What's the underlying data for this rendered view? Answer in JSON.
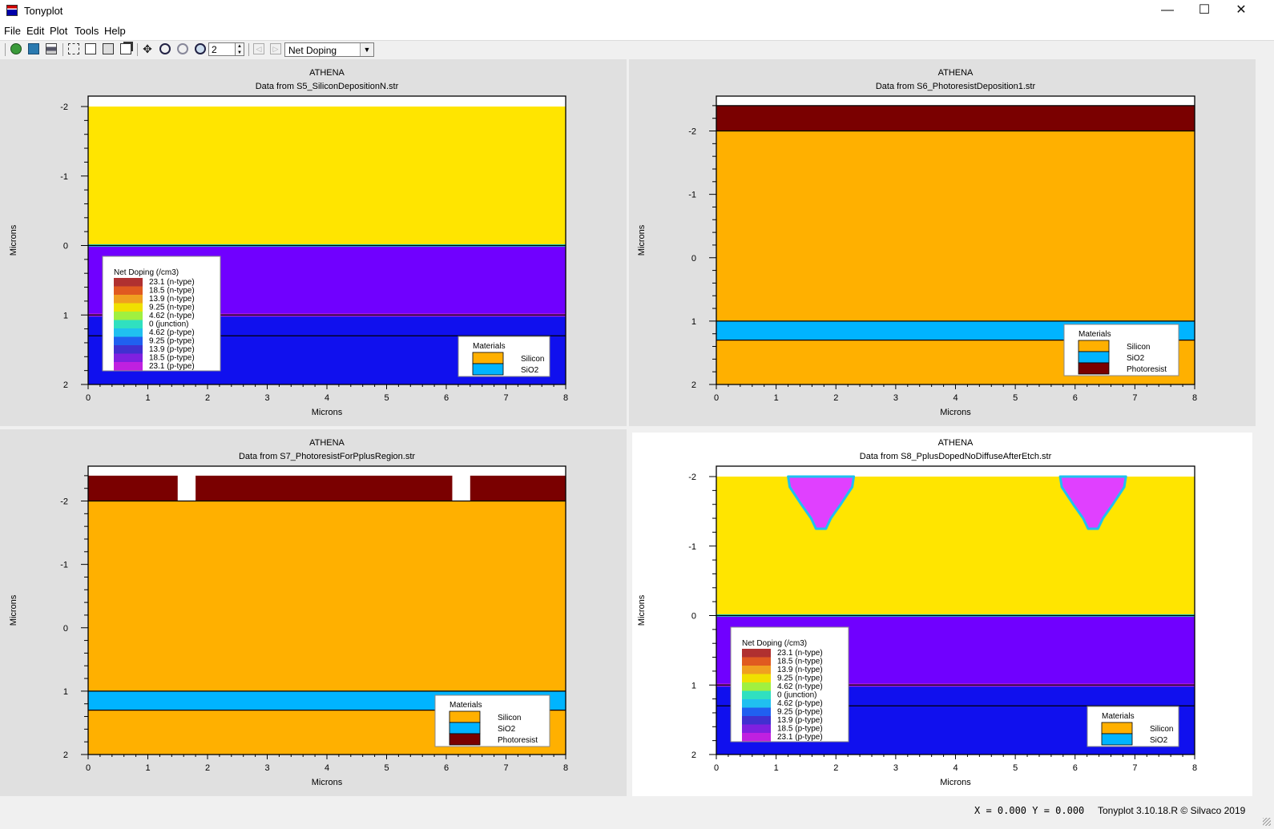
{
  "window": {
    "title": "Tonyplot",
    "icon": "tonyplot-app-icon",
    "controls": [
      "minimize-icon",
      "maximize-icon",
      "close-icon"
    ],
    "minimize_glyph": "—",
    "maximize_glyph": "☐",
    "close_glyph": "✕"
  },
  "menu": [
    "File",
    "Edit",
    "Plot",
    "Tools",
    "Help"
  ],
  "toolbar": {
    "icons": [
      "load-icon",
      "save-icon",
      "print-icon",
      "select-icon",
      "copy-icon",
      "paste-icon",
      "overlay-icon",
      "pan-icon",
      "zoom-in-icon",
      "zoom-out-icon",
      "zoom-region-icon",
      "previous-plot-icon",
      "next-plot-icon"
    ],
    "zoom_value": "2",
    "quantity_select": "Net Doping"
  },
  "colors": {
    "silicon_light": "#ffe500",
    "silicon": "#ffb000",
    "sio2": "#00b4ff",
    "photoresist": "#7a0000",
    "p_type_deep": "#7000ff",
    "p_type_strong": "#1010ee",
    "p_implant": "#e040ff"
  },
  "plots": [
    {
      "header": "ATHENA",
      "subtitle": "Data from S5_SiliconDepositionN.str",
      "chart_data": {
        "type": "heatmap",
        "xlabel": "Microns",
        "ylabel": "Microns",
        "xlim": [
          0,
          8
        ],
        "ylim": [
          -2.15,
          2
        ],
        "y_inverted": true,
        "x_ticks": [
          "0",
          "1",
          "2",
          "3",
          "4",
          "5",
          "6",
          "7",
          "8"
        ],
        "y_ticks": [
          "-2",
          "-1",
          "0",
          "1",
          "2"
        ],
        "regions": [
          {
            "material": "Silicon",
            "x": [
              0,
              8
            ],
            "y": [
              -2,
              0
            ],
            "color": "#ffe500"
          },
          {
            "material": "Silicon",
            "x": [
              0,
              8
            ],
            "y": [
              0,
              1
            ],
            "color": "#7000ff"
          },
          {
            "material": "Silicon",
            "x": [
              0,
              8
            ],
            "y": [
              1,
              1.3
            ],
            "color": "#1010ee"
          },
          {
            "material": "Silicon",
            "x": [
              0,
              8
            ],
            "y": [
              1.3,
              2
            ],
            "color": "#1010ee"
          }
        ],
        "interfaces": [
          0,
          1,
          1.3
        ],
        "doping_legend": {
          "title": "Net Doping (/cm3)",
          "entries": [
            "23.1 (n-type)",
            "18.5 (n-type)",
            "13.9 (n-type)",
            "9.25 (n-type)",
            "4.62 (n-type)",
            "0 (junction)",
            "4.62 (p-type)",
            "9.25 (p-type)",
            "13.9 (p-type)",
            "18.5 (p-type)",
            "23.1 (p-type)"
          ]
        },
        "materials_legend": {
          "title": "Materials",
          "entries": [
            {
              "name": "Silicon",
              "color": "#ffb000"
            },
            {
              "name": "SiO2",
              "color": "#00b4ff"
            }
          ]
        }
      }
    },
    {
      "header": "ATHENA",
      "subtitle": "Data from S6_PhotoresistDeposition1.str",
      "chart_data": {
        "type": "heatmap",
        "xlabel": "Microns",
        "ylabel": "Microns",
        "xlim": [
          0,
          8
        ],
        "ylim": [
          -2.55,
          2
        ],
        "y_inverted": true,
        "x_ticks": [
          "0",
          "1",
          "2",
          "3",
          "4",
          "5",
          "6",
          "7",
          "8"
        ],
        "y_ticks": [
          "-2",
          "-1",
          "0",
          "1",
          "2"
        ],
        "regions": [
          {
            "material": "Photoresist",
            "x": [
              0,
              8
            ],
            "y": [
              -2.4,
              -2
            ],
            "color": "#7a0000"
          },
          {
            "material": "Silicon",
            "x": [
              0,
              8
            ],
            "y": [
              -2,
              1
            ],
            "color": "#ffb000"
          },
          {
            "material": "SiO2",
            "x": [
              0,
              8
            ],
            "y": [
              1,
              1.3
            ],
            "color": "#00b4ff"
          },
          {
            "material": "Silicon",
            "x": [
              0,
              8
            ],
            "y": [
              1.3,
              2
            ],
            "color": "#ffb000"
          }
        ],
        "interfaces": [
          -2.4,
          -2,
          1,
          1.3
        ],
        "materials_legend": {
          "title": "Materials",
          "entries": [
            {
              "name": "Silicon",
              "color": "#ffb000"
            },
            {
              "name": "SiO2",
              "color": "#00b4ff"
            },
            {
              "name": "Photoresist",
              "color": "#7a0000"
            }
          ]
        }
      }
    },
    {
      "header": "ATHENA",
      "subtitle": "Data from S7_PhotoresistForPplusRegion.str",
      "chart_data": {
        "type": "heatmap",
        "xlabel": "Microns",
        "ylabel": "Microns",
        "xlim": [
          0,
          8
        ],
        "ylim": [
          -2.55,
          2
        ],
        "y_inverted": true,
        "x_ticks": [
          "0",
          "1",
          "2",
          "3",
          "4",
          "5",
          "6",
          "7",
          "8"
        ],
        "y_ticks": [
          "-2",
          "-1",
          "0",
          "1",
          "2"
        ],
        "regions": [
          {
            "material": "Photoresist",
            "x": [
              0,
              1.5
            ],
            "y": [
              -2.4,
              -2
            ],
            "color": "#7a0000"
          },
          {
            "material": "Photoresist",
            "x": [
              1.8,
              6.1
            ],
            "y": [
              -2.4,
              -2
            ],
            "color": "#7a0000"
          },
          {
            "material": "Photoresist",
            "x": [
              6.4,
              8
            ],
            "y": [
              -2.4,
              -2
            ],
            "color": "#7a0000"
          },
          {
            "material": "Silicon",
            "x": [
              0,
              8
            ],
            "y": [
              -2,
              1
            ],
            "color": "#ffb000"
          },
          {
            "material": "SiO2",
            "x": [
              0,
              8
            ],
            "y": [
              1,
              1.3
            ],
            "color": "#00b4ff"
          },
          {
            "material": "Silicon",
            "x": [
              0,
              8
            ],
            "y": [
              1.3,
              2
            ],
            "color": "#ffb000"
          }
        ],
        "interfaces": [
          -2,
          1,
          1.3
        ],
        "materials_legend": {
          "title": "Materials",
          "entries": [
            {
              "name": "Silicon",
              "color": "#ffb000"
            },
            {
              "name": "SiO2",
              "color": "#00b4ff"
            },
            {
              "name": "Photoresist",
              "color": "#7a0000"
            }
          ]
        }
      }
    },
    {
      "header": "ATHENA",
      "subtitle": "Data from S8_PplusDopedNoDiffuseAfterEtch.str",
      "chart_data": {
        "type": "heatmap",
        "xlabel": "Microns",
        "ylabel": "Microns",
        "xlim": [
          0,
          8
        ],
        "ylim": [
          -2.15,
          2
        ],
        "y_inverted": true,
        "x_ticks": [
          "0",
          "1",
          "2",
          "3",
          "4",
          "5",
          "6",
          "7",
          "8"
        ],
        "y_ticks": [
          "-2",
          "-1",
          "0",
          "1",
          "2"
        ],
        "regions": [
          {
            "material": "Silicon",
            "x": [
              0,
              8
            ],
            "y": [
              -2,
              0
            ],
            "color": "#ffe500"
          },
          {
            "material": "Silicon",
            "x": [
              0,
              8
            ],
            "y": [
              0,
              1
            ],
            "color": "#7000ff"
          },
          {
            "material": "Silicon",
            "x": [
              0,
              8
            ],
            "y": [
              1,
              1.3
            ],
            "color": "#1010ee"
          },
          {
            "material": "Silicon",
            "x": [
              0,
              8
            ],
            "y": [
              1.3,
              2
            ],
            "color": "#1010ee"
          }
        ],
        "implants": [
          {
            "x_center": 1.75,
            "x_halfwidth": 0.55,
            "depth": 1.25
          },
          {
            "x_center": 6.3,
            "x_halfwidth": 0.55,
            "depth": 1.25
          }
        ],
        "interfaces": [
          0,
          1,
          1.3
        ],
        "doping_legend": {
          "title": "Net Doping (/cm3)",
          "entries": [
            "23.1 (n-type)",
            "18.5 (n-type)",
            "13.9 (n-type)",
            "9.25 (n-type)",
            "4.62 (n-type)",
            "0 (junction)",
            "4.62 (p-type)",
            "9.25 (p-type)",
            "13.9 (p-type)",
            "18.5 (p-type)",
            "23.1 (p-type)"
          ]
        },
        "materials_legend": {
          "title": "Materials",
          "entries": [
            {
              "name": "Silicon",
              "color": "#ffb000"
            },
            {
              "name": "SiO2",
              "color": "#00b4ff"
            }
          ]
        }
      }
    }
  ],
  "status": {
    "coords": "X = 0.000 Y = 0.000",
    "version": "Tonyplot 3.10.18.R © Silvaco 2019"
  }
}
